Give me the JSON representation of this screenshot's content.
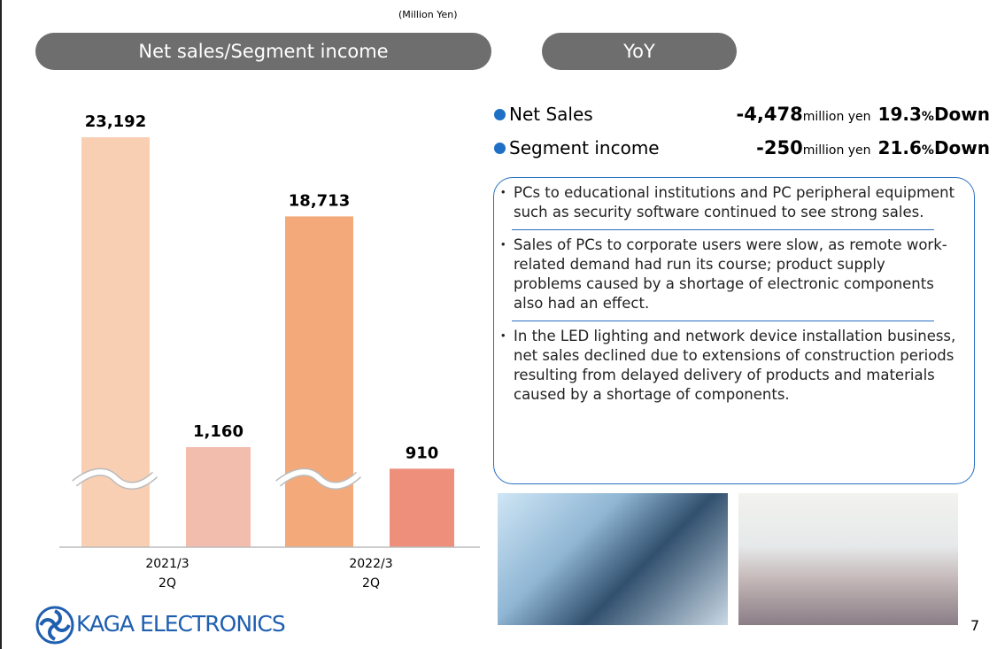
{
  "chart_data": {
    "type": "bar",
    "title": "Net sales/Segment income",
    "unit": "(Million Yen)",
    "categories": [
      "2021/3 2Q",
      "2022/3 2Q"
    ],
    "series": [
      {
        "colors": [
          "#f9cfb3",
          "#f4a97a"
        ],
        "values": [
          23192,
          18713
        ],
        "value_labels": [
          "23,192",
          "18,713"
        ],
        "broken_axis": true
      },
      {
        "colors": [
          "#f3bdad",
          "#ee8f7c"
        ],
        "values": [
          1160,
          910
        ],
        "value_labels": [
          "1,160",
          "910"
        ],
        "broken_axis": false
      }
    ]
  },
  "yoy": {
    "title": "YoY",
    "rows": [
      {
        "label": "Net Sales",
        "amount": "-4,478",
        "unit": "million yen",
        "pct": "19.3",
        "pct_unit": "%",
        "direction": "Down"
      },
      {
        "label": "Segment income",
        "amount": "-250",
        "unit": "million yen",
        "pct": "21.6",
        "pct_unit": "%",
        "direction": "Down"
      }
    ]
  },
  "notes": [
    "PCs to educational institutions and PC peripheral equipment such as security software continued to see strong sales.",
    "Sales of PCs to corporate users were slow, as remote work-related demand had run its course; product supply problems caused by a shortage of electronic components also had an effect.",
    "In the LED lighting and network device installation business, net sales declined due to extensions of construction periods resulting from delayed delivery of products and materials caused by a shortage of components."
  ],
  "footer": {
    "logo": "KAGA ELECTRONICS",
    "page": "7"
  }
}
